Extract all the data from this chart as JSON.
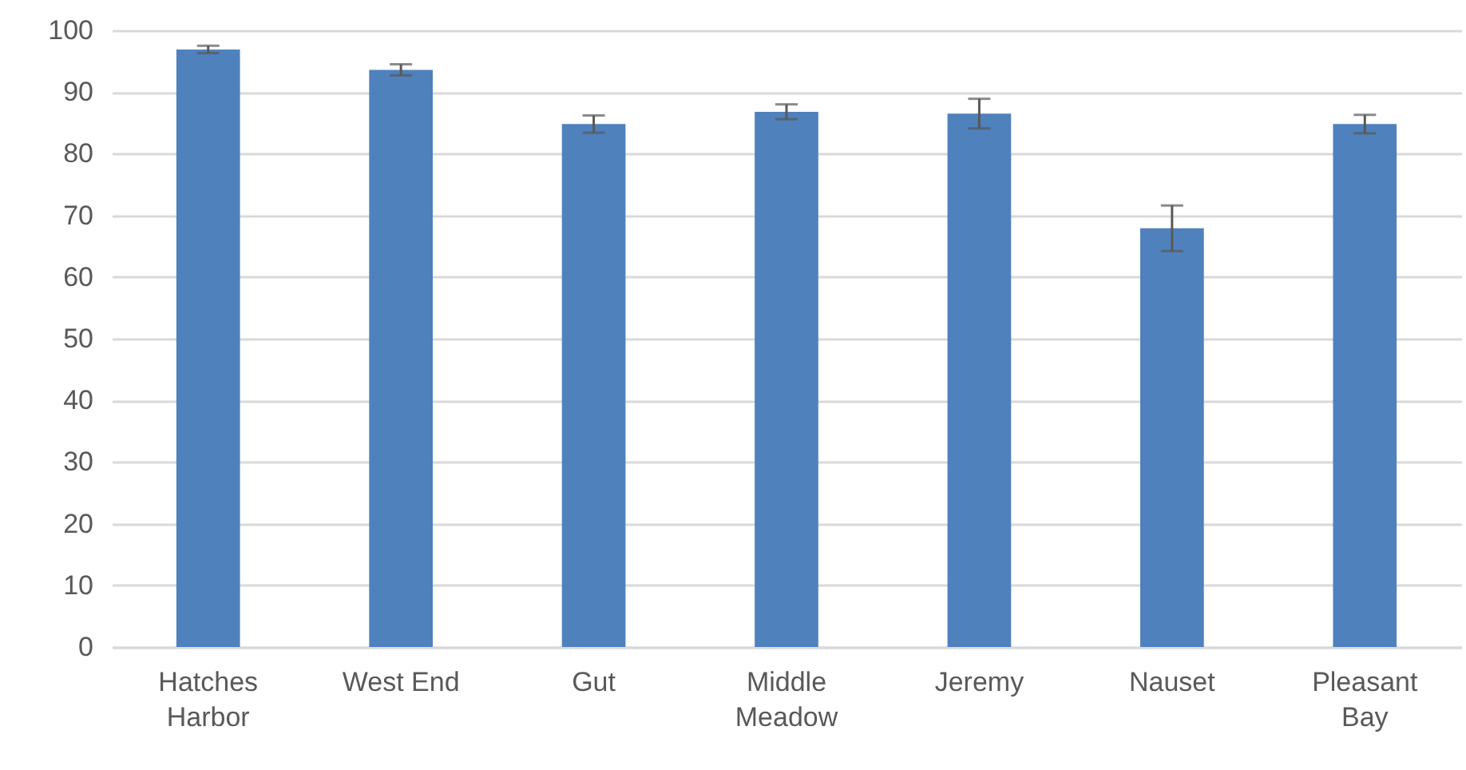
{
  "chart_data": {
    "type": "bar",
    "categories": [
      "Hatches Harbor",
      "West End",
      "Gut",
      "Middle Meadow",
      "Jeremy",
      "Nauset",
      "Pleasant Bay"
    ],
    "values": [
      96.9,
      93.6,
      84.8,
      86.8,
      86.5,
      67.9,
      84.8
    ],
    "errors": [
      0.6,
      0.9,
      1.4,
      1.2,
      2.4,
      3.7,
      1.5
    ],
    "color": "#4f81bd",
    "ylim": [
      0,
      100
    ],
    "yticks": [
      0,
      10,
      20,
      30,
      40,
      50,
      60,
      70,
      80,
      90,
      100
    ],
    "grid": "y"
  }
}
